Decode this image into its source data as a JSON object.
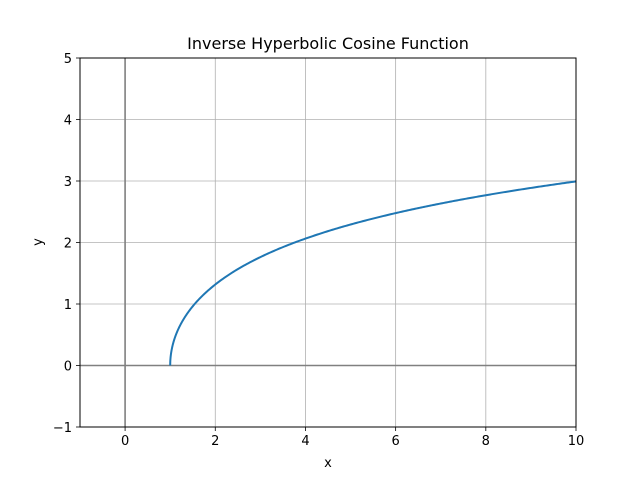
{
  "chart_data": {
    "type": "line",
    "title": "Inverse Hyperbolic Cosine Function",
    "xlabel": "x",
    "ylabel": "y",
    "xlim": [
      -1,
      10
    ],
    "ylim": [
      -1,
      5
    ],
    "xticks": [
      0,
      2,
      4,
      6,
      8,
      10
    ],
    "yticks": [
      -1,
      0,
      1,
      2,
      3,
      4,
      5
    ],
    "xtick_labels": [
      "0",
      "2",
      "4",
      "6",
      "8",
      "10"
    ],
    "ytick_labels": [
      "−1",
      "0",
      "1",
      "2",
      "3",
      "4",
      "5"
    ],
    "grid": true,
    "reference_lines": [
      "x = 0",
      "y = 0"
    ],
    "reference_line_color": "#808080",
    "series": [
      {
        "color": "#1f77b4",
        "x": [
          1,
          1.05,
          1.2,
          1.5,
          2,
          3,
          4,
          5,
          6,
          7,
          8,
          9,
          10
        ],
        "y": [
          0,
          0.3,
          0.62,
          0.96,
          1.32,
          1.76,
          2.06,
          2.29,
          2.48,
          2.63,
          2.77,
          2.89,
          2.99
        ]
      }
    ]
  }
}
